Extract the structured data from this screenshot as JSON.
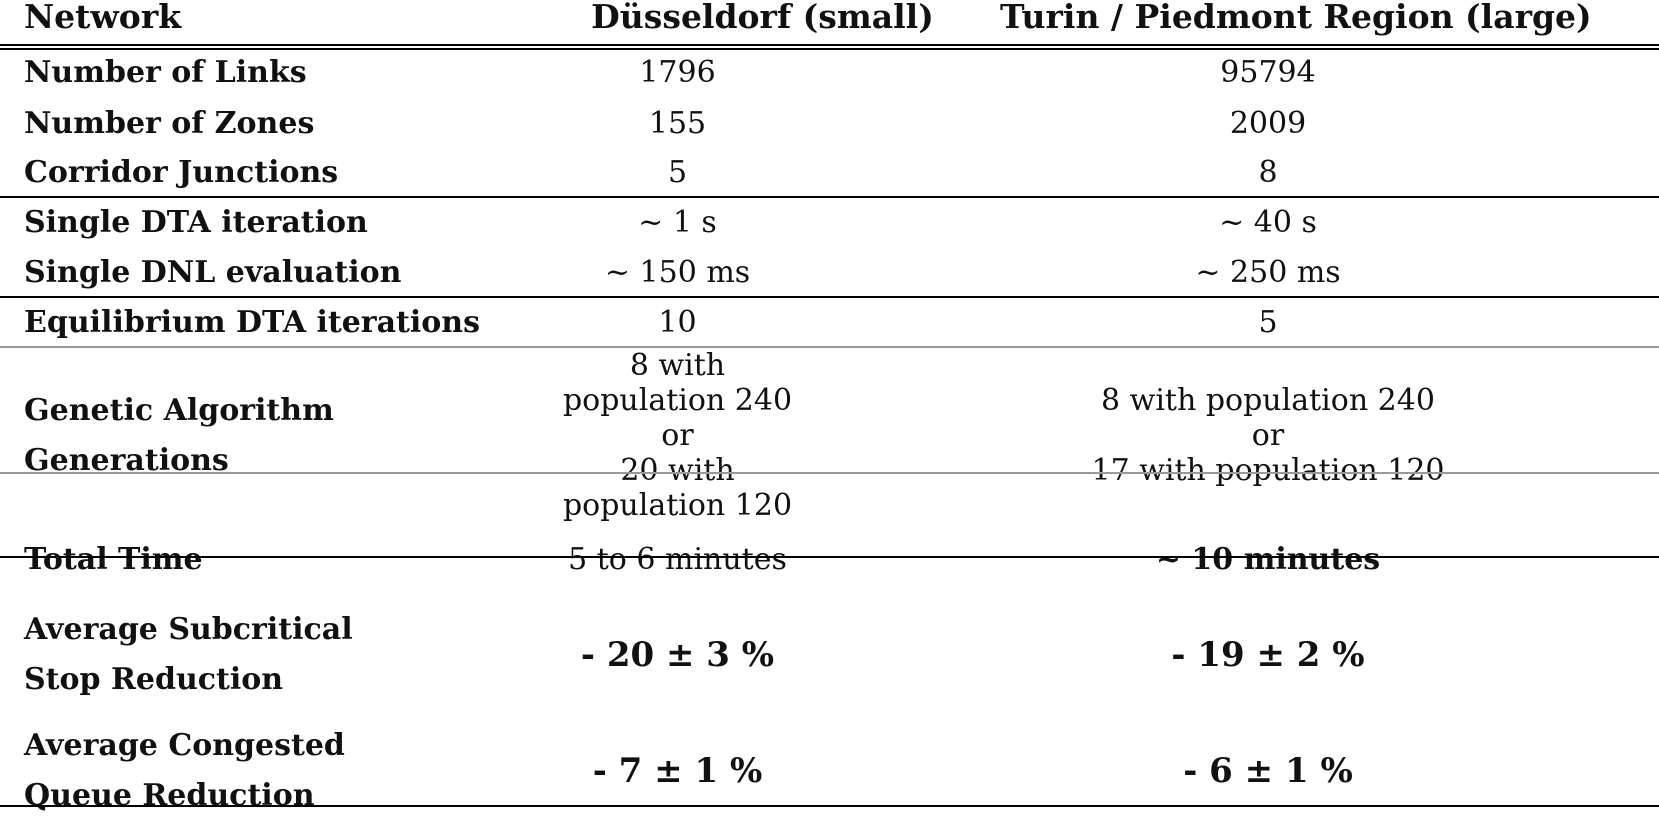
{
  "columns": {
    "label": "Network",
    "small": "Düsseldorf (small)",
    "large": "Turin / Piedmont Region (large)"
  },
  "rows": {
    "links": {
      "label": "Number of Links",
      "small": "1796",
      "large": "95794"
    },
    "zones": {
      "label": "Number of Zones",
      "small": "155",
      "large": "2009"
    },
    "junctions": {
      "label": "Corridor Junctions",
      "small": "5",
      "large": "8"
    },
    "dta_iter": {
      "label": "Single DTA iteration",
      "small": "~ 1 s",
      "large": "~ 40 s"
    },
    "dnl_eval": {
      "label": "Single DNL evaluation",
      "small": "~ 150 ms",
      "large": "~ 250 ms"
    },
    "eq_iter": {
      "label": "Equilibrium DTA iterations",
      "small": "10",
      "large": "5"
    },
    "ga": {
      "label_line1": "Genetic Algorithm",
      "label_line2": "Generations",
      "small_line1": "8 with population 240",
      "small_line2": "or",
      "small_line3": "20 with population 120",
      "large_line1": "8 with population 240",
      "large_line2": "or",
      "large_line3": "17 with population 120"
    },
    "total": {
      "label": "Total Time",
      "small": "5 to 6 minutes",
      "large": "~ 10 minutes"
    },
    "stop": {
      "label_line1": "Average Subcritical",
      "label_line2": "Stop Reduction",
      "small": "- 20 ± 3 %",
      "large": "- 19 ± 2 %"
    },
    "queue": {
      "label_line1": "Average Congested",
      "label_line2": "Queue Reduction",
      "small": "- 7 ± 1 %",
      "large": "- 6 ± 1 %"
    }
  }
}
